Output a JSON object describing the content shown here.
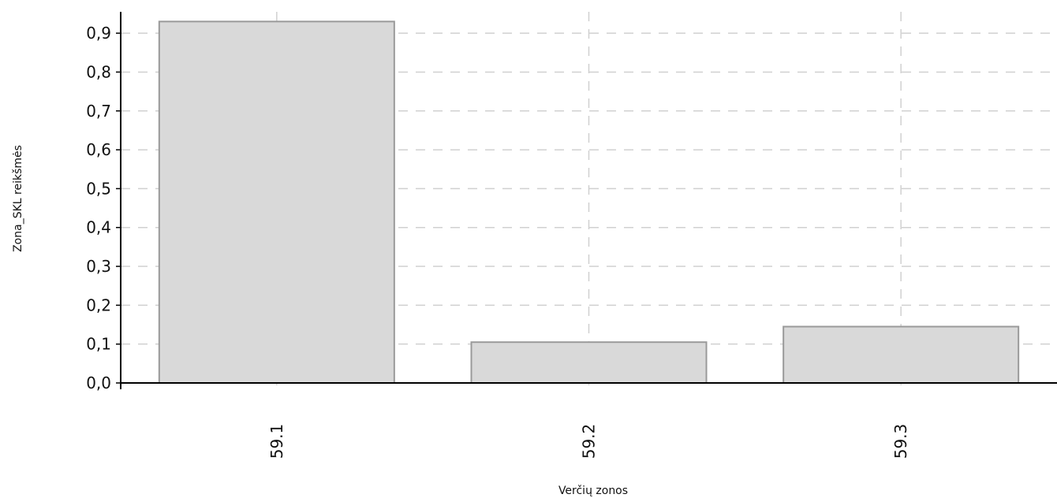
{
  "chart_data": {
    "type": "bar",
    "categories": [
      "59.1",
      "59.2",
      "59.3"
    ],
    "values": [
      0.93,
      0.105,
      0.145
    ],
    "xlabel": "Verčių zonos",
    "ylabel": "Zona_SKL reikšmės",
    "ylim": [
      0.0,
      0.95
    ],
    "yticks": [
      0.0,
      0.1,
      0.2,
      0.3,
      0.4,
      0.5,
      0.6,
      0.7,
      0.8,
      0.9
    ],
    "ytick_labels": [
      "0,0",
      "0,1",
      "0,2",
      "0,3",
      "0,4",
      "0,5",
      "0,6",
      "0,7",
      "0,8",
      "0,9"
    ],
    "grid": true,
    "colors": {
      "bar_fill": "#d9d9d9",
      "bar_stroke": "#9a9a9a",
      "grid": "#d0d0d0",
      "axis": "#000000"
    }
  }
}
